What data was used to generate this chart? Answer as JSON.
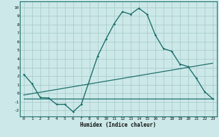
{
  "xlabel": "Humidex (Indice chaleur)",
  "background_color": "#cce8e8",
  "grid_color": "#aacccc",
  "line_color": "#1a6e6a",
  "xlim": [
    -0.5,
    23.5
  ],
  "ylim": [
    -2.7,
    10.7
  ],
  "xticks": [
    0,
    1,
    2,
    3,
    4,
    5,
    6,
    7,
    8,
    9,
    10,
    11,
    12,
    13,
    14,
    15,
    16,
    17,
    18,
    19,
    20,
    21,
    22,
    23
  ],
  "yticks": [
    -2,
    -1,
    0,
    1,
    2,
    3,
    4,
    5,
    6,
    7,
    8,
    9,
    10
  ],
  "main_x": [
    0,
    1,
    2,
    3,
    4,
    5,
    6,
    7,
    9,
    10,
    11,
    12,
    13,
    14,
    15,
    16,
    17,
    18,
    19,
    20,
    21,
    22,
    23
  ],
  "main_y": [
    2.2,
    1.1,
    -0.5,
    -0.55,
    -1.3,
    -1.3,
    -2.15,
    -1.3,
    4.35,
    6.3,
    8.1,
    9.5,
    9.2,
    9.9,
    9.2,
    6.8,
    5.2,
    4.9,
    3.4,
    3.1,
    1.75,
    0.2,
    -0.65
  ],
  "line2_x": [
    0,
    23
  ],
  "line2_y": [
    -0.65,
    -0.65
  ],
  "line3_x": [
    0,
    23
  ],
  "line3_y": [
    -0.2,
    3.5
  ]
}
